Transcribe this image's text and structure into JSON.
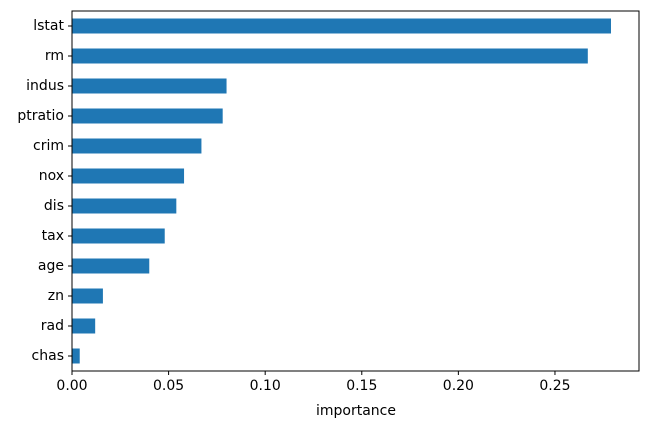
{
  "chart_data": {
    "type": "bar",
    "orientation": "horizontal",
    "categories": [
      "lstat",
      "rm",
      "indus",
      "ptratio",
      "crim",
      "nox",
      "dis",
      "tax",
      "age",
      "zn",
      "rad",
      "chas"
    ],
    "values": [
      0.279,
      0.267,
      0.08,
      0.078,
      0.067,
      0.058,
      0.054,
      0.048,
      0.04,
      0.016,
      0.012,
      0.004
    ],
    "title": "",
    "xlabel": "importance",
    "ylabel": "",
    "xlim": [
      0,
      0.2935
    ],
    "xticks": [
      0.0,
      0.05,
      0.1,
      0.15,
      0.2,
      0.25
    ],
    "xtick_labels": [
      "0.00",
      "0.05",
      "0.10",
      "0.15",
      "0.20",
      "0.25"
    ],
    "grid": false,
    "legend": "none",
    "bar_color": "#1f77b4"
  }
}
